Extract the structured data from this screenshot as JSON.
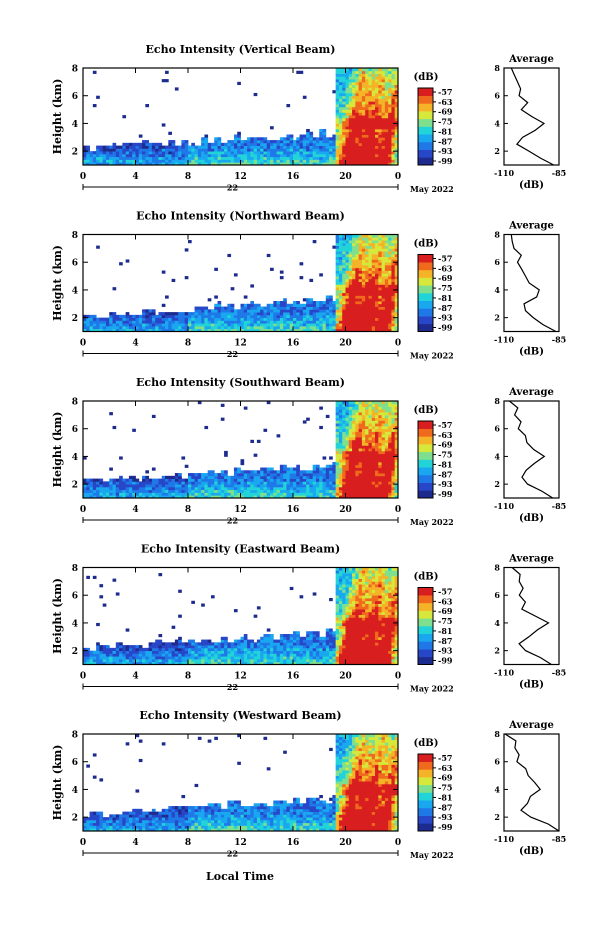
{
  "figure": {
    "xlabel": "Local Time",
    "date_label": "May 2022",
    "day_label": "22",
    "colorbar_unit": "(dB)",
    "profile_title": "Average",
    "profile_unit": "(dB)",
    "colors": {
      "noise": "#2b3a8f",
      "colormap": [
        "#1e2b8e",
        "#2747c8",
        "#1f78e8",
        "#19a8f0",
        "#22d3d8",
        "#7ee08e",
        "#d6e83c",
        "#f5b428",
        "#f06a1e",
        "#d81e1e"
      ]
    }
  },
  "chart_data": [
    {
      "type": "heatmap",
      "title": "Echo Intensity (Vertical Beam)",
      "xlabel": "Local Time",
      "ylabel": "Height (km)",
      "xlim": [
        0,
        24
      ],
      "ylim": [
        1,
        8
      ],
      "xticks": [
        "0",
        "4",
        "8",
        "12",
        "16",
        "20",
        "0"
      ],
      "yticks": [
        "2",
        "4",
        "6",
        "8"
      ],
      "colorbar": {
        "label": "(dB)",
        "ticks": [
          "-57",
          "-63",
          "-69",
          "-75",
          "-81",
          "-87",
          "-93",
          "-99"
        ]
      },
      "profile": {
        "title": "Average",
        "xlabel": "(dB)",
        "xticks": [
          "-110",
          "-85"
        ],
        "yticks": [
          "2",
          "4",
          "6",
          "8"
        ],
        "height": [
          1.0,
          1.5,
          2.0,
          2.5,
          3.0,
          3.5,
          4.0,
          4.5,
          5.0,
          5.5,
          6.0,
          6.5,
          7.0,
          7.5,
          8.0
        ],
        "avg_db": [
          -86,
          -92,
          -99,
          -103,
          -102,
          -97,
          -92,
          -98,
          -101,
          -100,
          -104,
          -102,
          -105,
          -104,
          -106
        ]
      }
    },
    {
      "type": "heatmap",
      "title": "Echo Intensity (Northward Beam)",
      "xlabel": "Local Time",
      "ylabel": "Height (km)",
      "xlim": [
        0,
        24
      ],
      "ylim": [
        1,
        8
      ],
      "xticks": [
        "0",
        "4",
        "8",
        "12",
        "16",
        "20",
        "0"
      ],
      "yticks": [
        "2",
        "4",
        "6",
        "8"
      ],
      "colorbar": {
        "label": "(dB)",
        "ticks": [
          "-57",
          "-63",
          "-69",
          "-75",
          "-81",
          "-87",
          "-93",
          "-99"
        ]
      },
      "profile": {
        "title": "Average",
        "xlabel": "(dB)",
        "xticks": [
          "-110",
          "-85"
        ],
        "yticks": [
          "2",
          "4",
          "6",
          "8"
        ],
        "height": [
          1.0,
          1.5,
          2.0,
          2.5,
          3.0,
          3.5,
          4.0,
          4.5,
          5.0,
          5.5,
          6.0,
          6.5,
          7.0,
          7.5,
          8.0
        ],
        "avg_db": [
          -86,
          -91,
          -97,
          -101,
          -100,
          -96,
          -94,
          -98,
          -100,
          -101,
          -104,
          -103,
          -106,
          -106,
          -108
        ]
      }
    },
    {
      "type": "heatmap",
      "title": "Echo Intensity (Southward Beam)",
      "xlabel": "Local Time",
      "ylabel": "Height (km)",
      "xlim": [
        0,
        24
      ],
      "ylim": [
        1,
        8
      ],
      "xticks": [
        "0",
        "4",
        "8",
        "12",
        "16",
        "20",
        "0"
      ],
      "yticks": [
        "2",
        "4",
        "6",
        "8"
      ],
      "colorbar": {
        "label": "(dB)",
        "ticks": [
          "-57",
          "-63",
          "-69",
          "-75",
          "-81",
          "-87",
          "-93",
          "-99"
        ]
      },
      "profile": {
        "title": "Average",
        "xlabel": "(dB)",
        "xticks": [
          "-110",
          "-85"
        ],
        "yticks": [
          "2",
          "4",
          "6",
          "8"
        ],
        "height": [
          1.0,
          1.5,
          2.0,
          2.5,
          3.0,
          3.5,
          4.0,
          4.5,
          5.0,
          5.5,
          6.0,
          6.5,
          7.0,
          7.5,
          8.0
        ],
        "avg_db": [
          -87,
          -93,
          -99,
          -102,
          -101,
          -96,
          -92,
          -97,
          -100,
          -101,
          -103,
          -102,
          -105,
          -105,
          -107
        ]
      }
    },
    {
      "type": "heatmap",
      "title": "Echo Intensity (Eastward Beam)",
      "xlabel": "Local Time",
      "ylabel": "Height (km)",
      "xlim": [
        0,
        24
      ],
      "ylim": [
        1,
        8
      ],
      "xticks": [
        "0",
        "4",
        "8",
        "12",
        "16",
        "20",
        "0"
      ],
      "yticks": [
        "2",
        "4",
        "6",
        "8"
      ],
      "colorbar": {
        "label": "(dB)",
        "ticks": [
          "-57",
          "-63",
          "-69",
          "-75",
          "-81",
          "-87",
          "-93",
          "-99"
        ]
      },
      "profile": {
        "title": "Average",
        "xlabel": "(dB)",
        "xticks": [
          "-110",
          "-85"
        ],
        "yticks": [
          "2",
          "4",
          "6",
          "8"
        ],
        "height": [
          1.0,
          1.5,
          2.0,
          2.5,
          3.0,
          3.5,
          4.0,
          4.5,
          5.0,
          5.5,
          6.0,
          6.5,
          7.0,
          7.5,
          8.0
        ],
        "avg_db": [
          -87,
          -94,
          -100,
          -103,
          -100,
          -96,
          -90,
          -97,
          -102,
          -100,
          -103,
          -101,
          -104,
          -104,
          -106
        ]
      }
    },
    {
      "type": "heatmap",
      "title": "Echo Intensity (Westward Beam)",
      "xlabel": "Local Time",
      "ylabel": "Height (km)",
      "xlim": [
        0,
        24
      ],
      "ylim": [
        1,
        8
      ],
      "xticks": [
        "0",
        "4",
        "8",
        "12",
        "16",
        "20",
        "0"
      ],
      "yticks": [
        "2",
        "4",
        "6",
        "8"
      ],
      "colorbar": {
        "label": "(dB)",
        "ticks": [
          "-57",
          "-63",
          "-69",
          "-75",
          "-81",
          "-87",
          "-93",
          "-99"
        ]
      },
      "profile": {
        "title": "Average",
        "xlabel": "(dB)",
        "xticks": [
          "-110",
          "-85"
        ],
        "yticks": [
          "2",
          "4",
          "6",
          "8"
        ],
        "height": [
          1.0,
          1.5,
          2.0,
          2.5,
          3.0,
          3.5,
          4.0,
          4.5,
          5.0,
          5.5,
          6.0,
          6.5,
          7.0,
          7.5,
          8.0
        ],
        "avg_db": [
          -86,
          -91,
          -98,
          -101,
          -100,
          -97,
          -94,
          -97,
          -100,
          -101,
          -103,
          -103,
          -105,
          -106,
          -108
        ]
      }
    }
  ]
}
